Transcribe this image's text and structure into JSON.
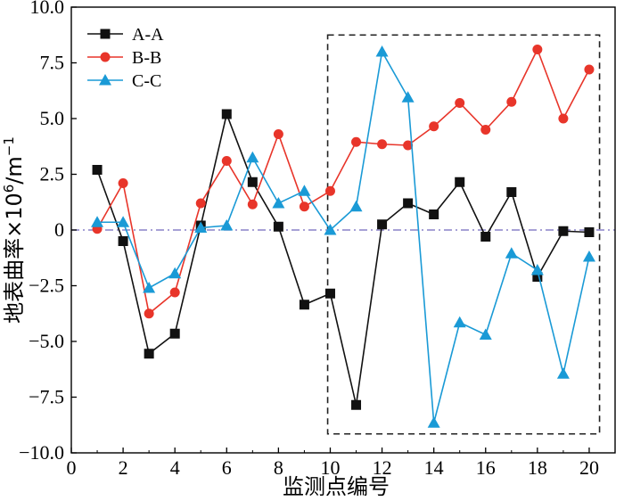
{
  "chart_data": {
    "type": "line",
    "title": "",
    "xlabel": "监测点编号",
    "ylabel_prefix": "地表曲率×10",
    "ylabel_exp": "6",
    "ylabel_unit": "/m",
    "ylabel_unit_exp": "−1",
    "xlim": [
      0,
      21
    ],
    "ylim": [
      -10.0,
      10.0
    ],
    "x_ticks": [
      0,
      2,
      4,
      6,
      8,
      10,
      12,
      14,
      16,
      18,
      20
    ],
    "x_tick_labels": [
      "0",
      "2",
      "4",
      "6",
      "8",
      "10",
      "12",
      "14",
      "16",
      "18",
      "20"
    ],
    "y_ticks": [
      -10.0,
      -7.5,
      -5.0,
      -2.5,
      0.0,
      2.5,
      5.0,
      7.5,
      10.0
    ],
    "y_tick_labels": [
      "−10.0",
      "−7.5",
      "−5.0",
      "−2.5",
      "0",
      "2.5",
      "5.0",
      "7.5",
      "10.0"
    ],
    "grid": false,
    "legend_position": "top-left",
    "reference_line": {
      "y": 0,
      "color": "#8a82c8",
      "style": "dash-dot"
    },
    "highlight_box": {
      "x": [
        9.9,
        20.4
      ],
      "y": [
        -9.15,
        8.75
      ],
      "color": "#222222",
      "style": "dashed"
    },
    "x": [
      1,
      2,
      3,
      4,
      5,
      6,
      7,
      8,
      9,
      10,
      11,
      12,
      13,
      14,
      15,
      16,
      17,
      18,
      19,
      20
    ],
    "series": [
      {
        "name": "A-A",
        "color": "#111111",
        "marker": "square",
        "values": [
          2.7,
          -0.5,
          -5.55,
          -4.65,
          0.2,
          5.2,
          2.15,
          0.15,
          -3.35,
          -2.85,
          -7.85,
          0.25,
          1.2,
          0.7,
          2.15,
          -0.3,
          1.7,
          -2.1,
          -0.05,
          -0.1
        ]
      },
      {
        "name": "B-B",
        "color": "#e8352a",
        "marker": "circle",
        "values": [
          0.05,
          2.1,
          -3.75,
          -2.8,
          1.2,
          3.1,
          1.15,
          4.3,
          1.05,
          1.75,
          3.95,
          3.85,
          3.8,
          4.65,
          5.7,
          4.5,
          5.75,
          8.1,
          5.0,
          7.2
        ]
      },
      {
        "name": "C-C",
        "color": "#1a9ad6",
        "marker": "triangle",
        "values": [
          0.35,
          0.35,
          -2.6,
          -1.95,
          0.1,
          0.2,
          3.25,
          1.2,
          1.75,
          0.0,
          1.05,
          8.0,
          5.95,
          -8.65,
          -4.15,
          -4.7,
          -1.05,
          -1.8,
          -6.45,
          -1.2
        ]
      }
    ]
  }
}
